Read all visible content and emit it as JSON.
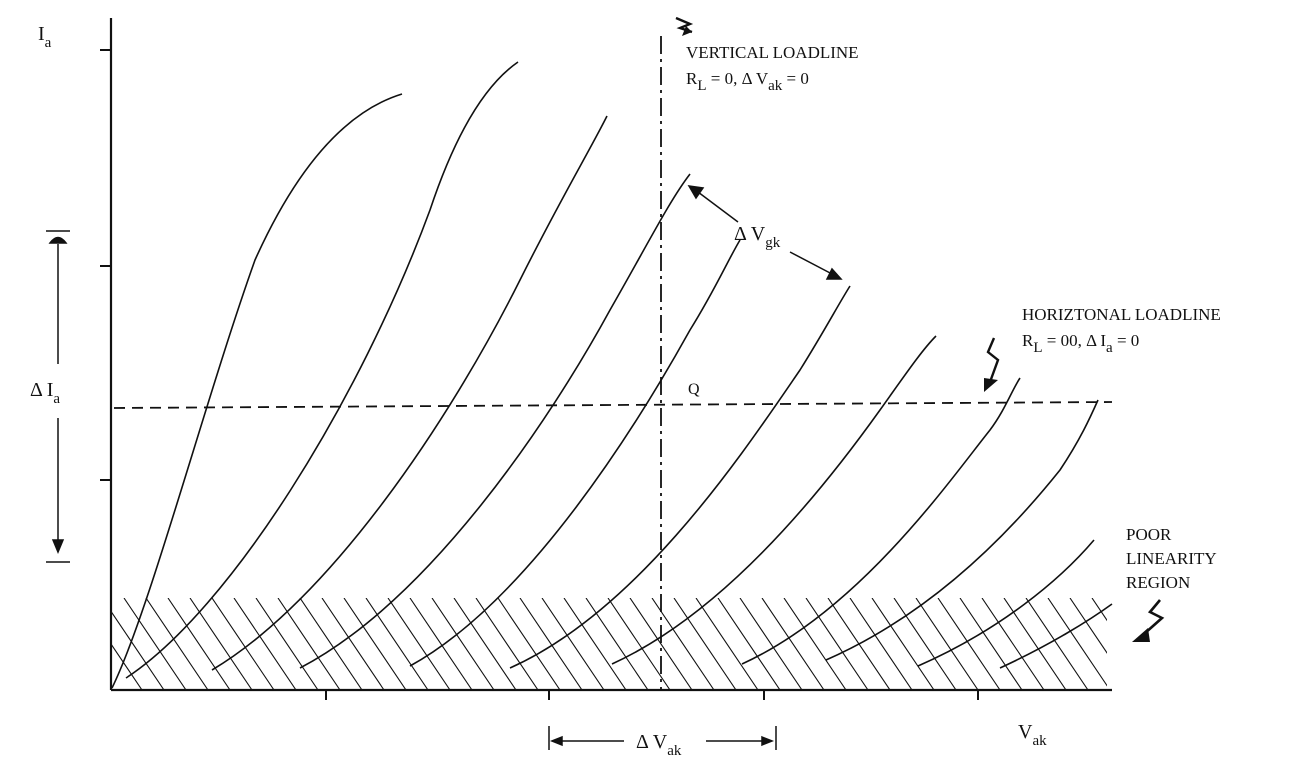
{
  "axes": {
    "y_label": "I",
    "y_label_sub": "a",
    "x_label": "V",
    "x_label_sub": "ak"
  },
  "annotations": {
    "vertical_loadline_title": "VERTICAL LOADLINE",
    "vertical_loadline_eq": "R",
    "vertical_loadline_eq_sub": "L",
    "vertical_loadline_eq_rest": " = 0, Δ V",
    "vertical_loadline_eq_sub2": "ak",
    "vertical_loadline_eq_tail": " = 0",
    "horizontal_loadline_title": "HORIZTONAL LOADLINE",
    "horizontal_loadline_eq": "R",
    "horizontal_loadline_eq_sub": "L",
    "horizontal_loadline_eq_rest": " = 00, Δ I",
    "horizontal_loadline_eq_sub2": "a",
    "horizontal_loadline_eq_tail": " = 0",
    "delta_vgk": "Δ V",
    "delta_vgk_sub": "gk",
    "delta_ia": "Δ  I",
    "delta_ia_sub": "a",
    "delta_vak": "Δ V",
    "delta_vak_sub": "ak",
    "q_point": "Q",
    "poor_linearity_line1": "POOR",
    "poor_linearity_line2": "LINEARITY",
    "poor_linearity_line3": "REGION"
  },
  "colors": {
    "ink": "#111111",
    "background": "#ffffff"
  }
}
